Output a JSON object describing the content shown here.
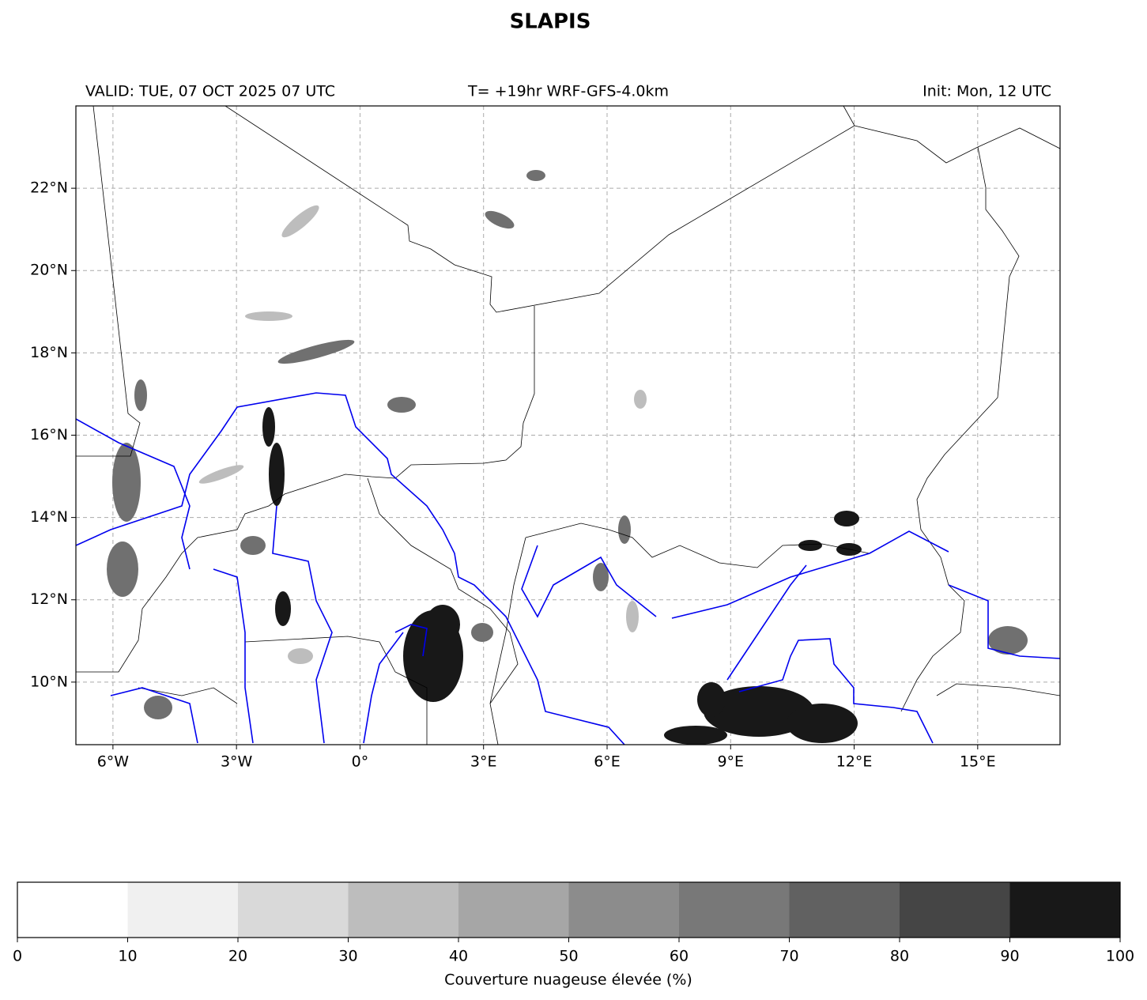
{
  "title": "SLAPIS",
  "header": {
    "valid": "VALID: TUE, 07 OCT 2025 07 UTC",
    "run": "T= +19hr WRF-GFS-4.0km",
    "init": "Init: Mon, 12 UTC"
  },
  "map": {
    "xlim": [
      -6.9,
      17.0
    ],
    "ylim": [
      8.48,
      24.0
    ],
    "xticks": [
      {
        "value": -6,
        "label": "6°W"
      },
      {
        "value": -3,
        "label": "3°W"
      },
      {
        "value": 0,
        "label": "0°"
      },
      {
        "value": 3,
        "label": "3°E"
      },
      {
        "value": 6,
        "label": "6°E"
      },
      {
        "value": 9,
        "label": "9°E"
      },
      {
        "value": 12,
        "label": "12°E"
      },
      {
        "value": 15,
        "label": "15°E"
      }
    ],
    "yticks": [
      {
        "value": 10,
        "label": "10°N"
      },
      {
        "value": 12,
        "label": "12°N"
      },
      {
        "value": 14,
        "label": "14°N"
      },
      {
        "value": 16,
        "label": "16°N"
      },
      {
        "value": 18,
        "label": "18°N"
      },
      {
        "value": 20,
        "label": "20°N"
      },
      {
        "value": 22,
        "label": "22°N"
      }
    ],
    "grid": true
  },
  "colorbar": {
    "label": "Couverture nuageuse élevée (%)",
    "ticks": [
      0,
      10,
      20,
      30,
      40,
      50,
      60,
      70,
      80,
      90,
      100
    ],
    "colors": [
      "#ffffff",
      "#f0f0f0",
      "#d9d9d9",
      "#bdbdbd",
      "#a6a6a6",
      "#8c8c8c",
      "#787878",
      "#616161",
      "#454545",
      "#181818"
    ]
  }
}
